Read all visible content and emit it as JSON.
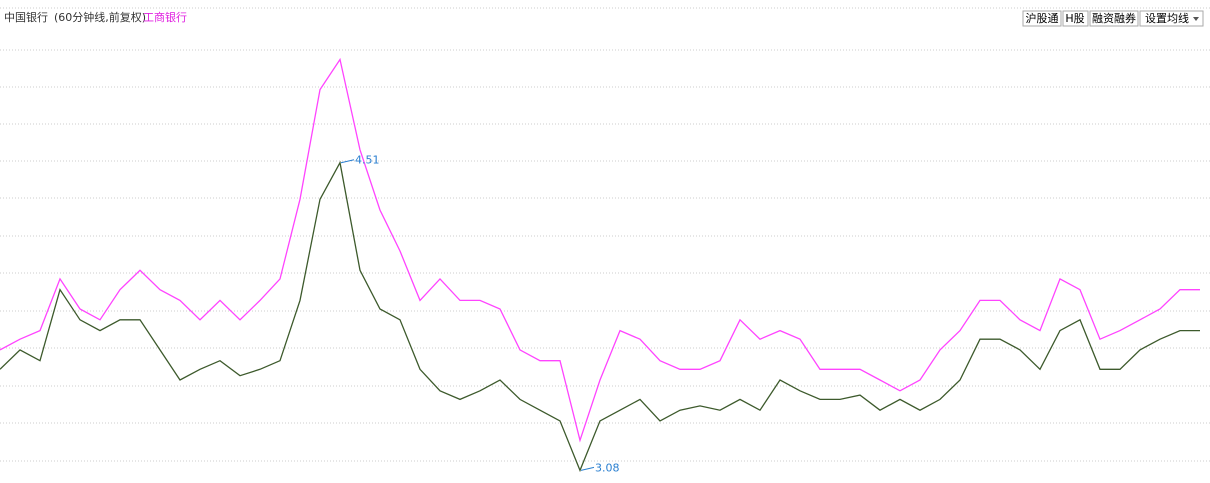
{
  "header": {
    "stock": "中国银行",
    "period": "(60分钟线,前复权)",
    "compare": "工商银行"
  },
  "buttons": [
    "沪股通",
    "H股",
    "融资融券",
    "设置均线"
  ],
  "chart_data": {
    "type": "line",
    "categories": [
      null,
      null,
      null,
      null,
      null,
      null,
      null,
      null,
      null,
      null,
      null,
      null,
      null,
      null,
      null,
      null,
      null,
      null,
      null,
      null,
      null,
      null,
      null,
      null,
      null,
      null,
      null,
      null,
      null,
      null,
      null,
      null,
      null,
      null,
      null,
      null,
      null,
      null,
      null,
      null,
      null,
      null,
      null,
      null,
      null,
      null,
      null,
      null,
      null,
      null,
      null,
      null,
      null,
      null,
      null,
      null,
      null,
      null,
      null,
      null,
      null
    ],
    "ylim": [
      3.04,
      5.22
    ],
    "series": [
      {
        "name": "中国银行",
        "color": "#3d5a2c",
        "values": [
          3.55,
          3.64,
          3.59,
          3.92,
          3.78,
          3.73,
          3.78,
          3.78,
          3.64,
          3.5,
          3.55,
          3.59,
          3.52,
          3.55,
          3.59,
          3.87,
          4.34,
          4.51,
          4.01,
          3.83,
          3.78,
          3.55,
          3.45,
          3.41,
          3.45,
          3.5,
          3.41,
          3.36,
          3.31,
          3.08,
          3.31,
          3.36,
          3.41,
          3.31,
          3.36,
          3.38,
          3.36,
          3.41,
          3.36,
          3.5,
          3.45,
          3.41,
          3.41,
          3.43,
          3.36,
          3.41,
          3.36,
          3.41,
          3.5,
          3.69,
          3.69,
          3.64,
          3.55,
          3.73,
          3.78,
          3.55,
          3.55,
          3.64,
          3.69,
          3.73,
          3.73
        ]
      },
      {
        "name": "工商银行",
        "color": "#ff44ff",
        "values": [
          3.64,
          3.69,
          3.73,
          3.97,
          3.83,
          3.78,
          3.92,
          4.01,
          3.92,
          3.87,
          3.78,
          3.87,
          3.78,
          3.87,
          3.97,
          4.34,
          4.85,
          4.99,
          4.57,
          4.29,
          4.1,
          3.87,
          3.97,
          3.87,
          3.87,
          3.83,
          3.64,
          3.59,
          3.59,
          3.22,
          3.5,
          3.73,
          3.69,
          3.59,
          3.55,
          3.55,
          3.59,
          3.78,
          3.69,
          3.73,
          3.69,
          3.55,
          3.55,
          3.55,
          3.5,
          3.45,
          3.5,
          3.64,
          3.73,
          3.87,
          3.87,
          3.78,
          3.73,
          3.97,
          3.92,
          3.69,
          3.73,
          3.78,
          3.83,
          3.92,
          3.92
        ]
      }
    ],
    "annotations": [
      {
        "text": "4.51"
      },
      {
        "text": "3.08"
      }
    ]
  }
}
